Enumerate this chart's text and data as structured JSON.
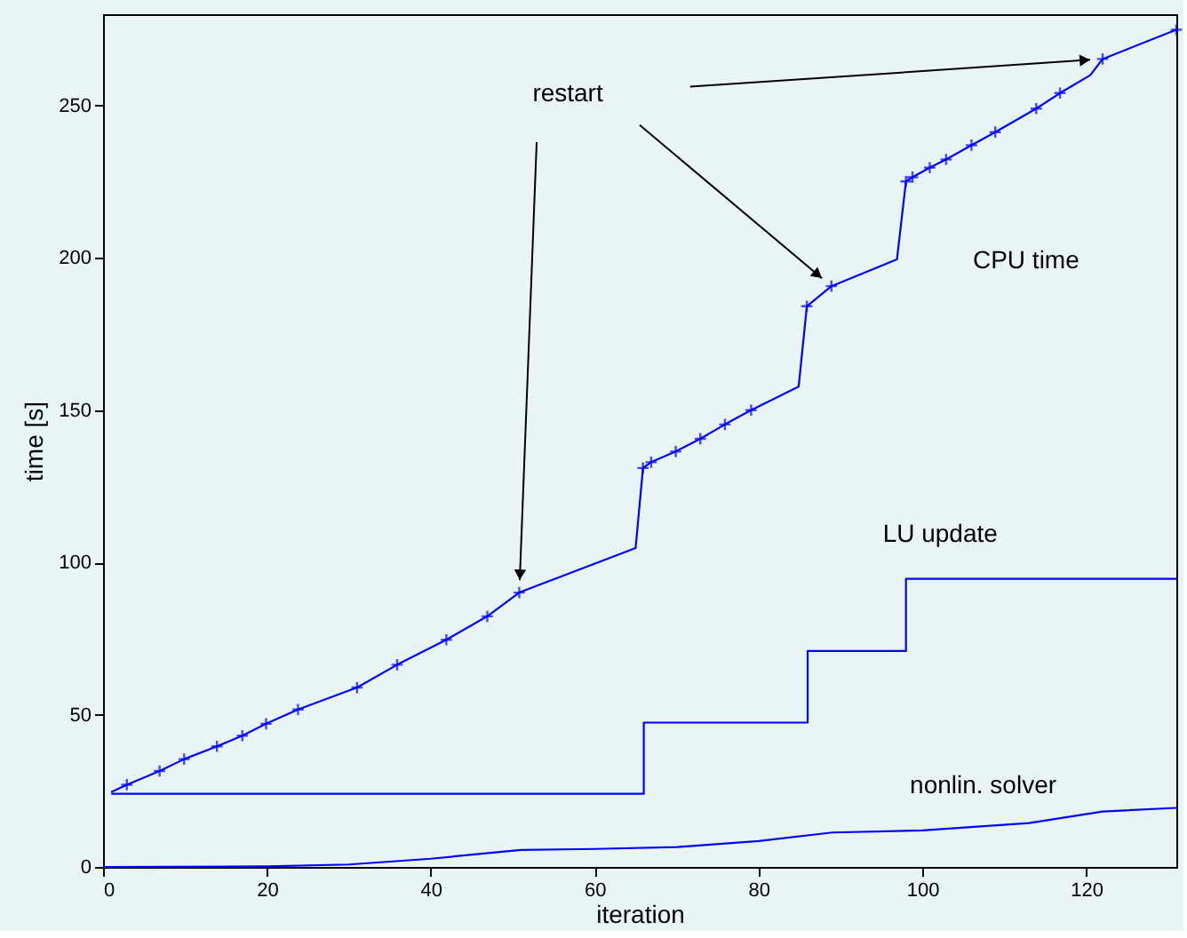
{
  "chart_data": {
    "type": "line",
    "xlabel": "iteration",
    "ylabel": "time [s]",
    "xlim": [
      0,
      131
    ],
    "ylim": [
      0,
      280
    ],
    "xticks": [
      0,
      20,
      40,
      60,
      80,
      100,
      120
    ],
    "yticks": [
      0,
      50,
      100,
      150,
      200,
      250
    ],
    "grid": false,
    "line_style": "solid",
    "marker": "none",
    "annotations": [
      "restart"
    ],
    "series": [
      {
        "name": "CPU time",
        "color": "#0000ff",
        "x": [
          1,
          2.9,
          6.9,
          9.9,
          13.9,
          17,
          19.9,
          23.8,
          31,
          35.9,
          41.9,
          46.9,
          50.8,
          65,
          65.9,
          66.9,
          69.9,
          72.9,
          75.9,
          79.1,
          84.9,
          85.9,
          88.9,
          96.9,
          98,
          98.8,
          100.9,
          102.9,
          106,
          108.9,
          113.9,
          116.8,
          120.5,
          122,
          131
        ],
        "values": [
          24.6,
          27,
          31.5,
          35.4,
          39.6,
          43.1,
          47,
          51.7,
          58.9,
          66.4,
          74.6,
          82.3,
          90.1,
          104.7,
          131,
          132.9,
          136.4,
          140.6,
          145.3,
          150,
          157.7,
          184.1,
          190.7,
          199.5,
          225.1,
          226.5,
          229.6,
          232.3,
          237,
          241.3,
          249,
          254.1,
          260,
          265.3,
          274.9
        ]
      },
      {
        "type": "scatter",
        "marker": "cross",
        "color": "#0000ff",
        "x": [
          2.9,
          6.9,
          9.9,
          13.9,
          17,
          19.9,
          23.8,
          31,
          35.9,
          41.9,
          46.9,
          50.8,
          65.9,
          66.9,
          69.9,
          72.9,
          75.9,
          79.1,
          85.9,
          88.9,
          98,
          98.8,
          100.9,
          102.9,
          106,
          108.9,
          113.9,
          116.8,
          122,
          131
        ],
        "values": [
          27,
          31.5,
          35.4,
          39.6,
          43.1,
          47,
          51.7,
          58.9,
          66.4,
          74.6,
          82.3,
          90.1,
          131,
          132.9,
          136.4,
          140.6,
          145.3,
          150,
          184.1,
          190.7,
          225.1,
          226.5,
          229.6,
          232.3,
          237,
          241.3,
          249,
          254.1,
          265.3,
          274.9
        ]
      },
      {
        "name": "LU update",
        "type": "step",
        "color": "#0000ff",
        "x": [
          1,
          66,
          86,
          98,
          131
        ],
        "values": [
          24,
          47.4,
          70.9,
          94.6,
          94.6
        ]
      },
      {
        "name": "nonlin. solver",
        "color": "#0000ff",
        "x": [
          0,
          20,
          30,
          40,
          51,
          60,
          70,
          80,
          89,
          100,
          113,
          122,
          131
        ],
        "values": [
          0,
          0.2,
          0.8,
          2.7,
          5.6,
          5.9,
          6.5,
          8.5,
          11.3,
          12,
          14.4,
          18.2,
          19.4
        ]
      }
    ]
  }
}
